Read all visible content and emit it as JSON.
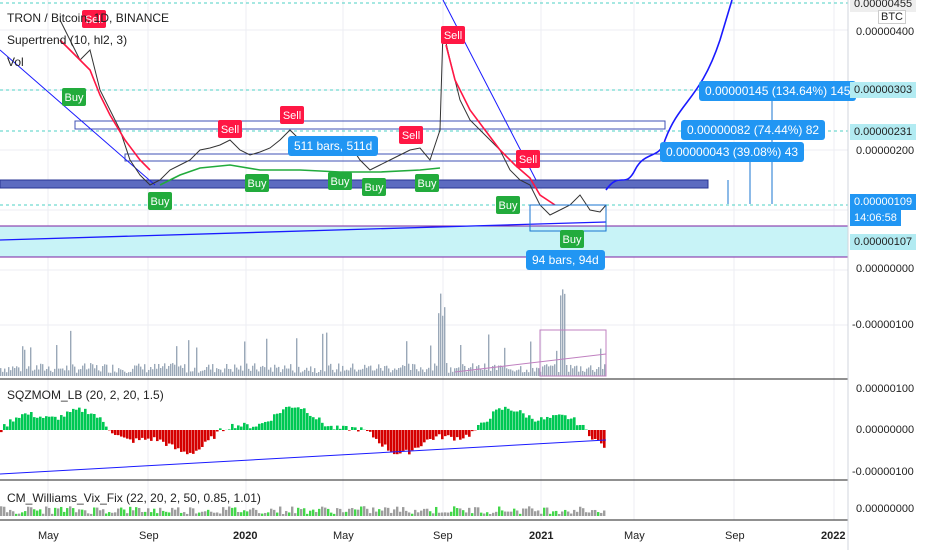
{
  "header": {
    "title": "TRON / Bitcoin, 1D, BINANCE",
    "indicator1": "Supertrend (10, hl2, 3)",
    "indicator2": "Vol"
  },
  "indicators": {
    "squeeze": "SQZMOM_LB (20, 2, 20, 1.5)",
    "williams": "CM_Williams_Vix_Fix (22, 20, 2, 50, 0.85, 1.01)"
  },
  "price_axis": {
    "unit": "BTC",
    "ticks": [
      "0.00000455",
      "0.00000400",
      "0.00000303",
      "0.00000231",
      "0.00000200",
      "0.00000109",
      "14:06:58",
      "0.00000107",
      "0.00000000",
      "-0.00000100"
    ],
    "lower_ticks": [
      "0.00000100",
      "0.00000000",
      "-0.00000100",
      "0.00000000"
    ]
  },
  "time_axis": [
    "May",
    "Sep",
    "2020",
    "May",
    "Sep",
    "2021",
    "May",
    "Sep",
    "2022"
  ],
  "annotations": {
    "range1": "511 bars, 511d",
    "range2": "94 bars, 94d",
    "target1": "0.00000043 (39.08%) 43",
    "target2": "0.00000082 (74.44%) 82",
    "target3": "0.00000145 (134.64%) 145"
  },
  "signals": {
    "buy": "Buy",
    "sell": "Sell"
  },
  "colors": {
    "up": "#26a69a",
    "down": "#ef5350",
    "supertrend_up": "#22ab3c",
    "supertrend_down": "#ff1744",
    "pill": "#2196f3",
    "zone": "#c8f3f7",
    "current": "#2196f3"
  },
  "chart_data": {
    "type": "line",
    "title": "TRON / Bitcoin, 1D, BINANCE",
    "x": [
      "2019-05",
      "2019-09",
      "2020-01",
      "2020-05",
      "2020-09",
      "2021-01",
      "2021-03"
    ],
    "series": [
      {
        "values": [
          3.8e-06,
          1.6e-06,
          1.9e-06,
          1.7e-06,
          4e-06,
          1.2e-06,
          1.09e-06
        ]
      }
    ],
    "ylim": [
      -1e-07,
      4.55e-06
    ],
    "last_price": 1.09e-06
  }
}
